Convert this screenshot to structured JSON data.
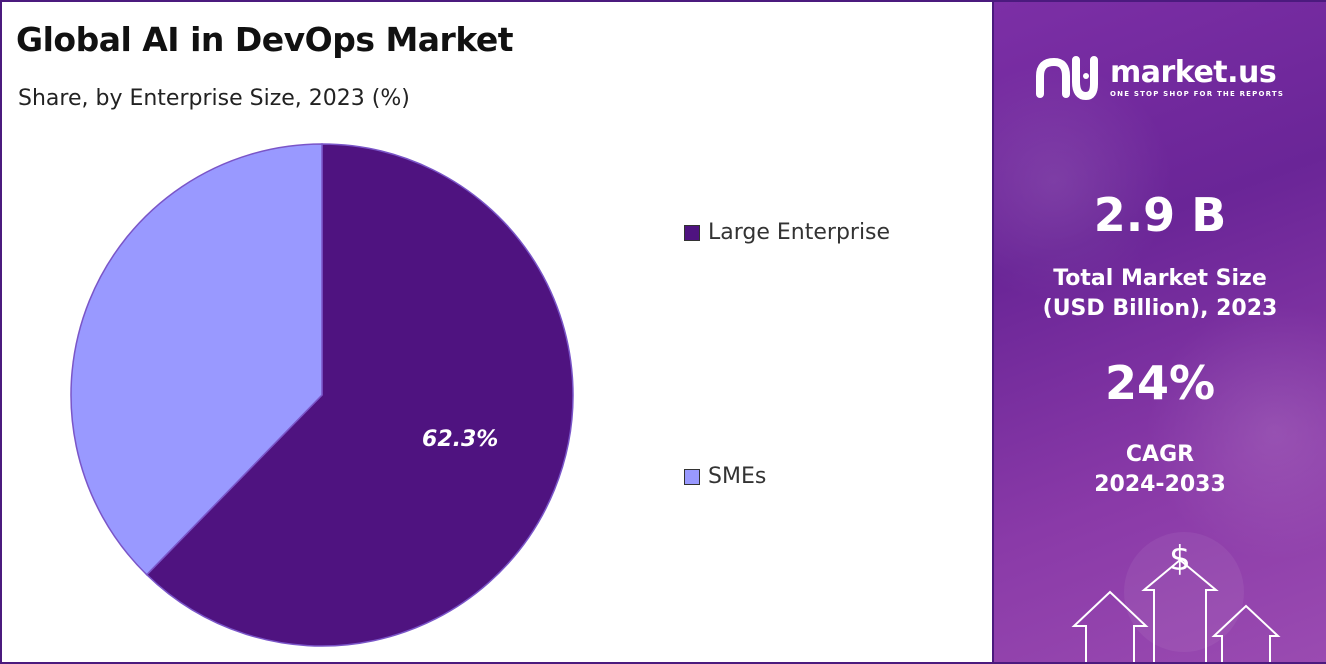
{
  "title": "Global AI in DevOps Market",
  "subtitle": "Share, by Enterprise Size, 2023 (%)",
  "brand": {
    "name": "market.us",
    "tagline": "ONE STOP SHOP FOR THE REPORTS",
    "logo_icon": "market-us-logo-icon"
  },
  "stats": {
    "market_size_value": "2.9 B",
    "market_size_label_line1": "Total Market Size",
    "market_size_label_line2": "(USD Billion), 2023",
    "cagr_value": "24%",
    "cagr_label_line1": "CAGR",
    "cagr_label_line2": "2024-2033"
  },
  "colors": {
    "large_enterprise": "#4f1380",
    "smes": "#9999ff",
    "panel": "#6a2597",
    "border": "#4b1a7e"
  },
  "chart_data": {
    "type": "pie",
    "title": "Global AI in DevOps Market",
    "subtitle": "Share, by Enterprise Size, 2023 (%)",
    "categories": [
      "Large Enterprise",
      "SMEs"
    ],
    "values": [
      62.3,
      37.7
    ],
    "data_labels": [
      "62.3%",
      ""
    ],
    "legend": "right",
    "start_angle": "12 o'clock, clockwise"
  }
}
